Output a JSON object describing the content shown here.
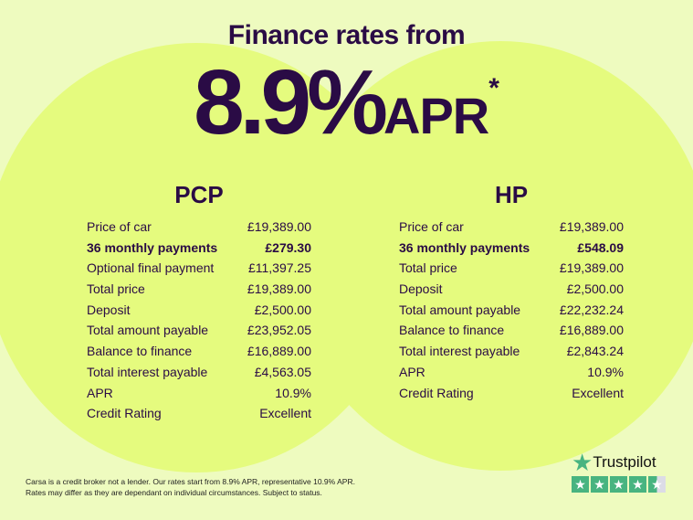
{
  "header": {
    "subtitle": "Finance rates from",
    "rate": "8.9%",
    "apr": "APR",
    "asterisk": "*"
  },
  "pcp": {
    "title": "PCP",
    "rows": [
      {
        "label": "Price of car",
        "value": "£19,389.00",
        "bold": false
      },
      {
        "label": "36 monthly payments",
        "value": "£279.30",
        "bold": true
      },
      {
        "label": "Optional final payment",
        "value": "£11,397.25",
        "bold": false
      },
      {
        "label": "Total price",
        "value": "£19,389.00",
        "bold": false
      },
      {
        "label": "Deposit",
        "value": "£2,500.00",
        "bold": false
      },
      {
        "label": "Total amount payable",
        "value": "£23,952.05",
        "bold": false
      },
      {
        "label": "Balance to finance",
        "value": "£16,889.00",
        "bold": false
      },
      {
        "label": "Total interest payable",
        "value": "£4,563.05",
        "bold": false
      },
      {
        "label": "APR",
        "value": "10.9%",
        "bold": false
      },
      {
        "label": "Credit Rating",
        "value": "Excellent",
        "bold": false
      }
    ]
  },
  "hp": {
    "title": "HP",
    "rows": [
      {
        "label": "Price of car",
        "value": "£19,389.00",
        "bold": false
      },
      {
        "label": "36 monthly payments",
        "value": "£548.09",
        "bold": true
      },
      {
        "label": "Total price",
        "value": "£19,389.00",
        "bold": false
      },
      {
        "label": "Deposit",
        "value": "£2,500.00",
        "bold": false
      },
      {
        "label": "Total amount payable",
        "value": "£22,232.24",
        "bold": false
      },
      {
        "label": "Balance to finance",
        "value": "£16,889.00",
        "bold": false
      },
      {
        "label": "Total interest payable",
        "value": "£2,843.24",
        "bold": false
      },
      {
        "label": "APR",
        "value": "10.9%",
        "bold": false
      },
      {
        "label": "Credit Rating",
        "value": "Excellent",
        "bold": false
      }
    ]
  },
  "disclaimer": {
    "line1": "Carsa is a credit broker not a lender. Our rates start from 8.9% APR, representative 10.9% APR.",
    "line2": "Rates may differ as they are dependant on individual circumstances. Subject to status."
  },
  "trustpilot": {
    "name": "Trustpilot",
    "rating_stars": 4.5,
    "max_stars": 5,
    "color": "#48b480"
  },
  "colors": {
    "background": "#eefbbf",
    "circle": "#e5fb7e",
    "text": "#2a0b45"
  }
}
